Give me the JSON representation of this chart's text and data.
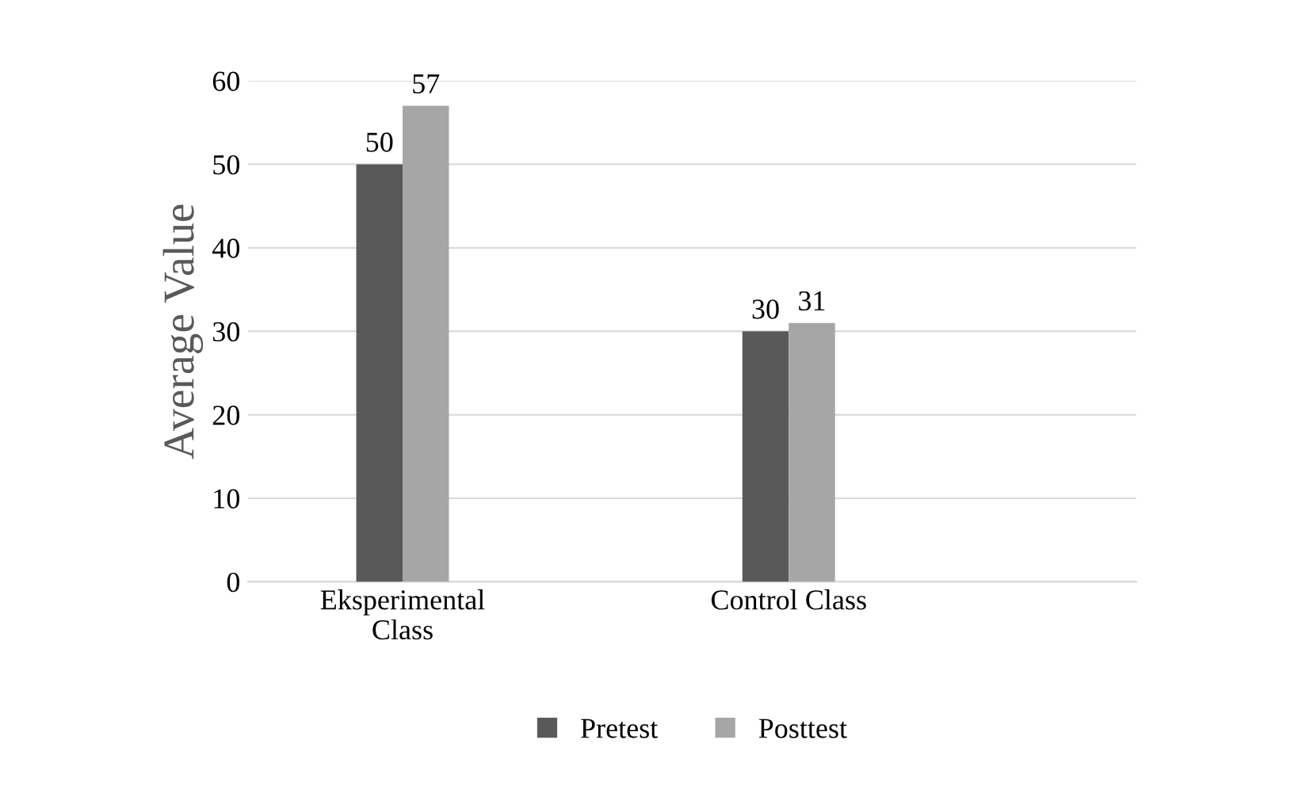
{
  "chart_data": {
    "type": "bar",
    "ylabel": "Average Value",
    "categories": [
      "Eksperimental\nClass",
      "Control Class"
    ],
    "series": [
      {
        "name": "Pretest",
        "color": "#595959",
        "values": [
          50,
          30
        ]
      },
      {
        "name": "Posttest",
        "color": "#a6a6a6",
        "values": [
          57,
          31
        ]
      }
    ],
    "ylim": [
      0,
      60
    ],
    "yticks": [
      0,
      10,
      20,
      30,
      40,
      50,
      60
    ],
    "grid": "y",
    "legend": "bottom",
    "data_labels": true
  }
}
